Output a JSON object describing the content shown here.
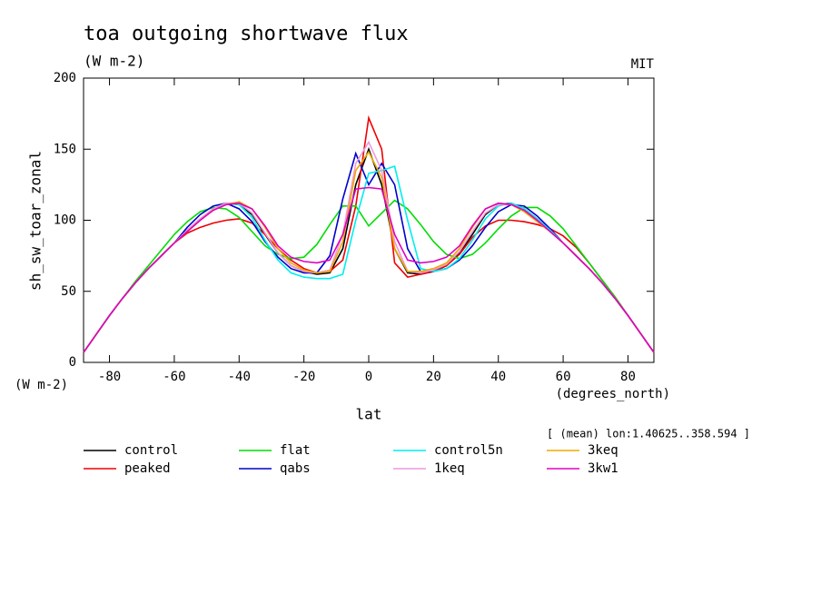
{
  "chart_data": {
    "type": "line",
    "title": "toa outgoing shortwave flux",
    "subtitle": "(W m-2)",
    "source": "MIT",
    "y_label": "sh_sw_toar_zonal",
    "y_units": "(W m-2)",
    "x_label": "lat",
    "x_units": "(degrees_north)",
    "annotation": "[ (mean) lon:1.40625..358.594 ]",
    "x": [
      -88,
      -84,
      -80,
      -76,
      -72,
      -68,
      -64,
      -60,
      -56,
      -52,
      -48,
      -44,
      -40,
      -36,
      -32,
      -28,
      -24,
      -20,
      -16,
      -12,
      -8,
      -4,
      0,
      4,
      8,
      12,
      16,
      20,
      24,
      28,
      32,
      36,
      40,
      44,
      48,
      52,
      56,
      60,
      64,
      68,
      72,
      76,
      80,
      84,
      88
    ],
    "xlim": [
      -88,
      88
    ],
    "xticks": [
      -80,
      -60,
      -40,
      -20,
      0,
      20,
      40,
      60,
      80
    ],
    "ylim": [
      0,
      200
    ],
    "yticks": [
      0,
      50,
      100,
      150,
      200
    ],
    "series": [
      {
        "name": "control",
        "color": "#000000",
        "values": [
          7,
          20,
          33,
          45,
          56,
          66,
          75,
          84,
          93,
          101,
          108,
          112,
          111,
          104,
          90,
          77,
          68,
          64,
          62,
          63,
          80,
          125,
          150,
          125,
          80,
          63,
          62,
          64,
          68,
          77,
          90,
          104,
          111,
          112,
          108,
          101,
          93,
          84,
          75,
          66,
          56,
          45,
          33,
          20,
          7
        ]
      },
      {
        "name": "peaked",
        "color": "#ee0000",
        "values": [
          7,
          20,
          33,
          45,
          56,
          66,
          75,
          84,
          91,
          95,
          98,
          100,
          101,
          98,
          90,
          80,
          72,
          66,
          63,
          64,
          72,
          110,
          172,
          150,
          70,
          60,
          62,
          64,
          68,
          76,
          88,
          96,
          100,
          100,
          99,
          97,
          94,
          89,
          81,
          70,
          58,
          46,
          33,
          20,
          7
        ]
      },
      {
        "name": "flat",
        "color": "#00dd00",
        "values": [
          7,
          20,
          33,
          45,
          57,
          68,
          79,
          90,
          99,
          106,
          109,
          108,
          102,
          92,
          82,
          76,
          73,
          74,
          83,
          97,
          110,
          110,
          96,
          105,
          114,
          108,
          97,
          85,
          76,
          73,
          76,
          84,
          94,
          103,
          109,
          109,
          103,
          94,
          82,
          70,
          58,
          46,
          33,
          20,
          7
        ]
      },
      {
        "name": "qabs",
        "color": "#0000cc",
        "values": [
          7,
          20,
          33,
          45,
          56,
          66,
          75,
          84,
          95,
          104,
          110,
          112,
          108,
          99,
          85,
          74,
          66,
          63,
          63,
          75,
          115,
          147,
          125,
          140,
          125,
          80,
          64,
          64,
          66,
          72,
          82,
          95,
          106,
          111,
          110,
          103,
          94,
          84,
          75,
          66,
          56,
          45,
          33,
          20,
          7
        ]
      },
      {
        "name": "control5n",
        "color": "#00eeee",
        "values": [
          7,
          20,
          33,
          45,
          56,
          66,
          75,
          84,
          93,
          101,
          108,
          112,
          111,
          102,
          86,
          72,
          63,
          60,
          59,
          59,
          62,
          100,
          133,
          135,
          138,
          100,
          66,
          64,
          66,
          73,
          86,
          101,
          110,
          112,
          108,
          101,
          93,
          84,
          75,
          66,
          56,
          45,
          33,
          20,
          7
        ]
      },
      {
        "name": "1keq",
        "color": "#ee99dd",
        "values": [
          7,
          20,
          33,
          45,
          56,
          66,
          75,
          84,
          93,
          101,
          108,
          112,
          112,
          105,
          91,
          77,
          68,
          64,
          63,
          65,
          90,
          140,
          155,
          135,
          85,
          64,
          63,
          65,
          69,
          78,
          92,
          105,
          111,
          111,
          107,
          100,
          92,
          84,
          75,
          66,
          56,
          45,
          33,
          20,
          7
        ]
      },
      {
        "name": "3keq",
        "color": "#f0a800",
        "values": [
          7,
          20,
          33,
          45,
          56,
          66,
          75,
          84,
          92,
          100,
          107,
          111,
          113,
          108,
          95,
          80,
          70,
          65,
          63,
          64,
          85,
          135,
          148,
          130,
          80,
          64,
          64,
          66,
          70,
          80,
          95,
          108,
          112,
          111,
          106,
          99,
          92,
          84,
          75,
          66,
          56,
          45,
          33,
          20,
          7
        ]
      },
      {
        "name": "3kw1",
        "color": "#e000c0",
        "values": [
          7,
          20,
          33,
          45,
          56,
          66,
          75,
          84,
          92,
          100,
          107,
          111,
          112,
          108,
          96,
          82,
          74,
          71,
          70,
          72,
          90,
          122,
          123,
          122,
          90,
          72,
          70,
          71,
          74,
          82,
          96,
          108,
          112,
          111,
          107,
          100,
          92,
          84,
          75,
          66,
          56,
          45,
          33,
          20,
          7
        ]
      }
    ]
  }
}
